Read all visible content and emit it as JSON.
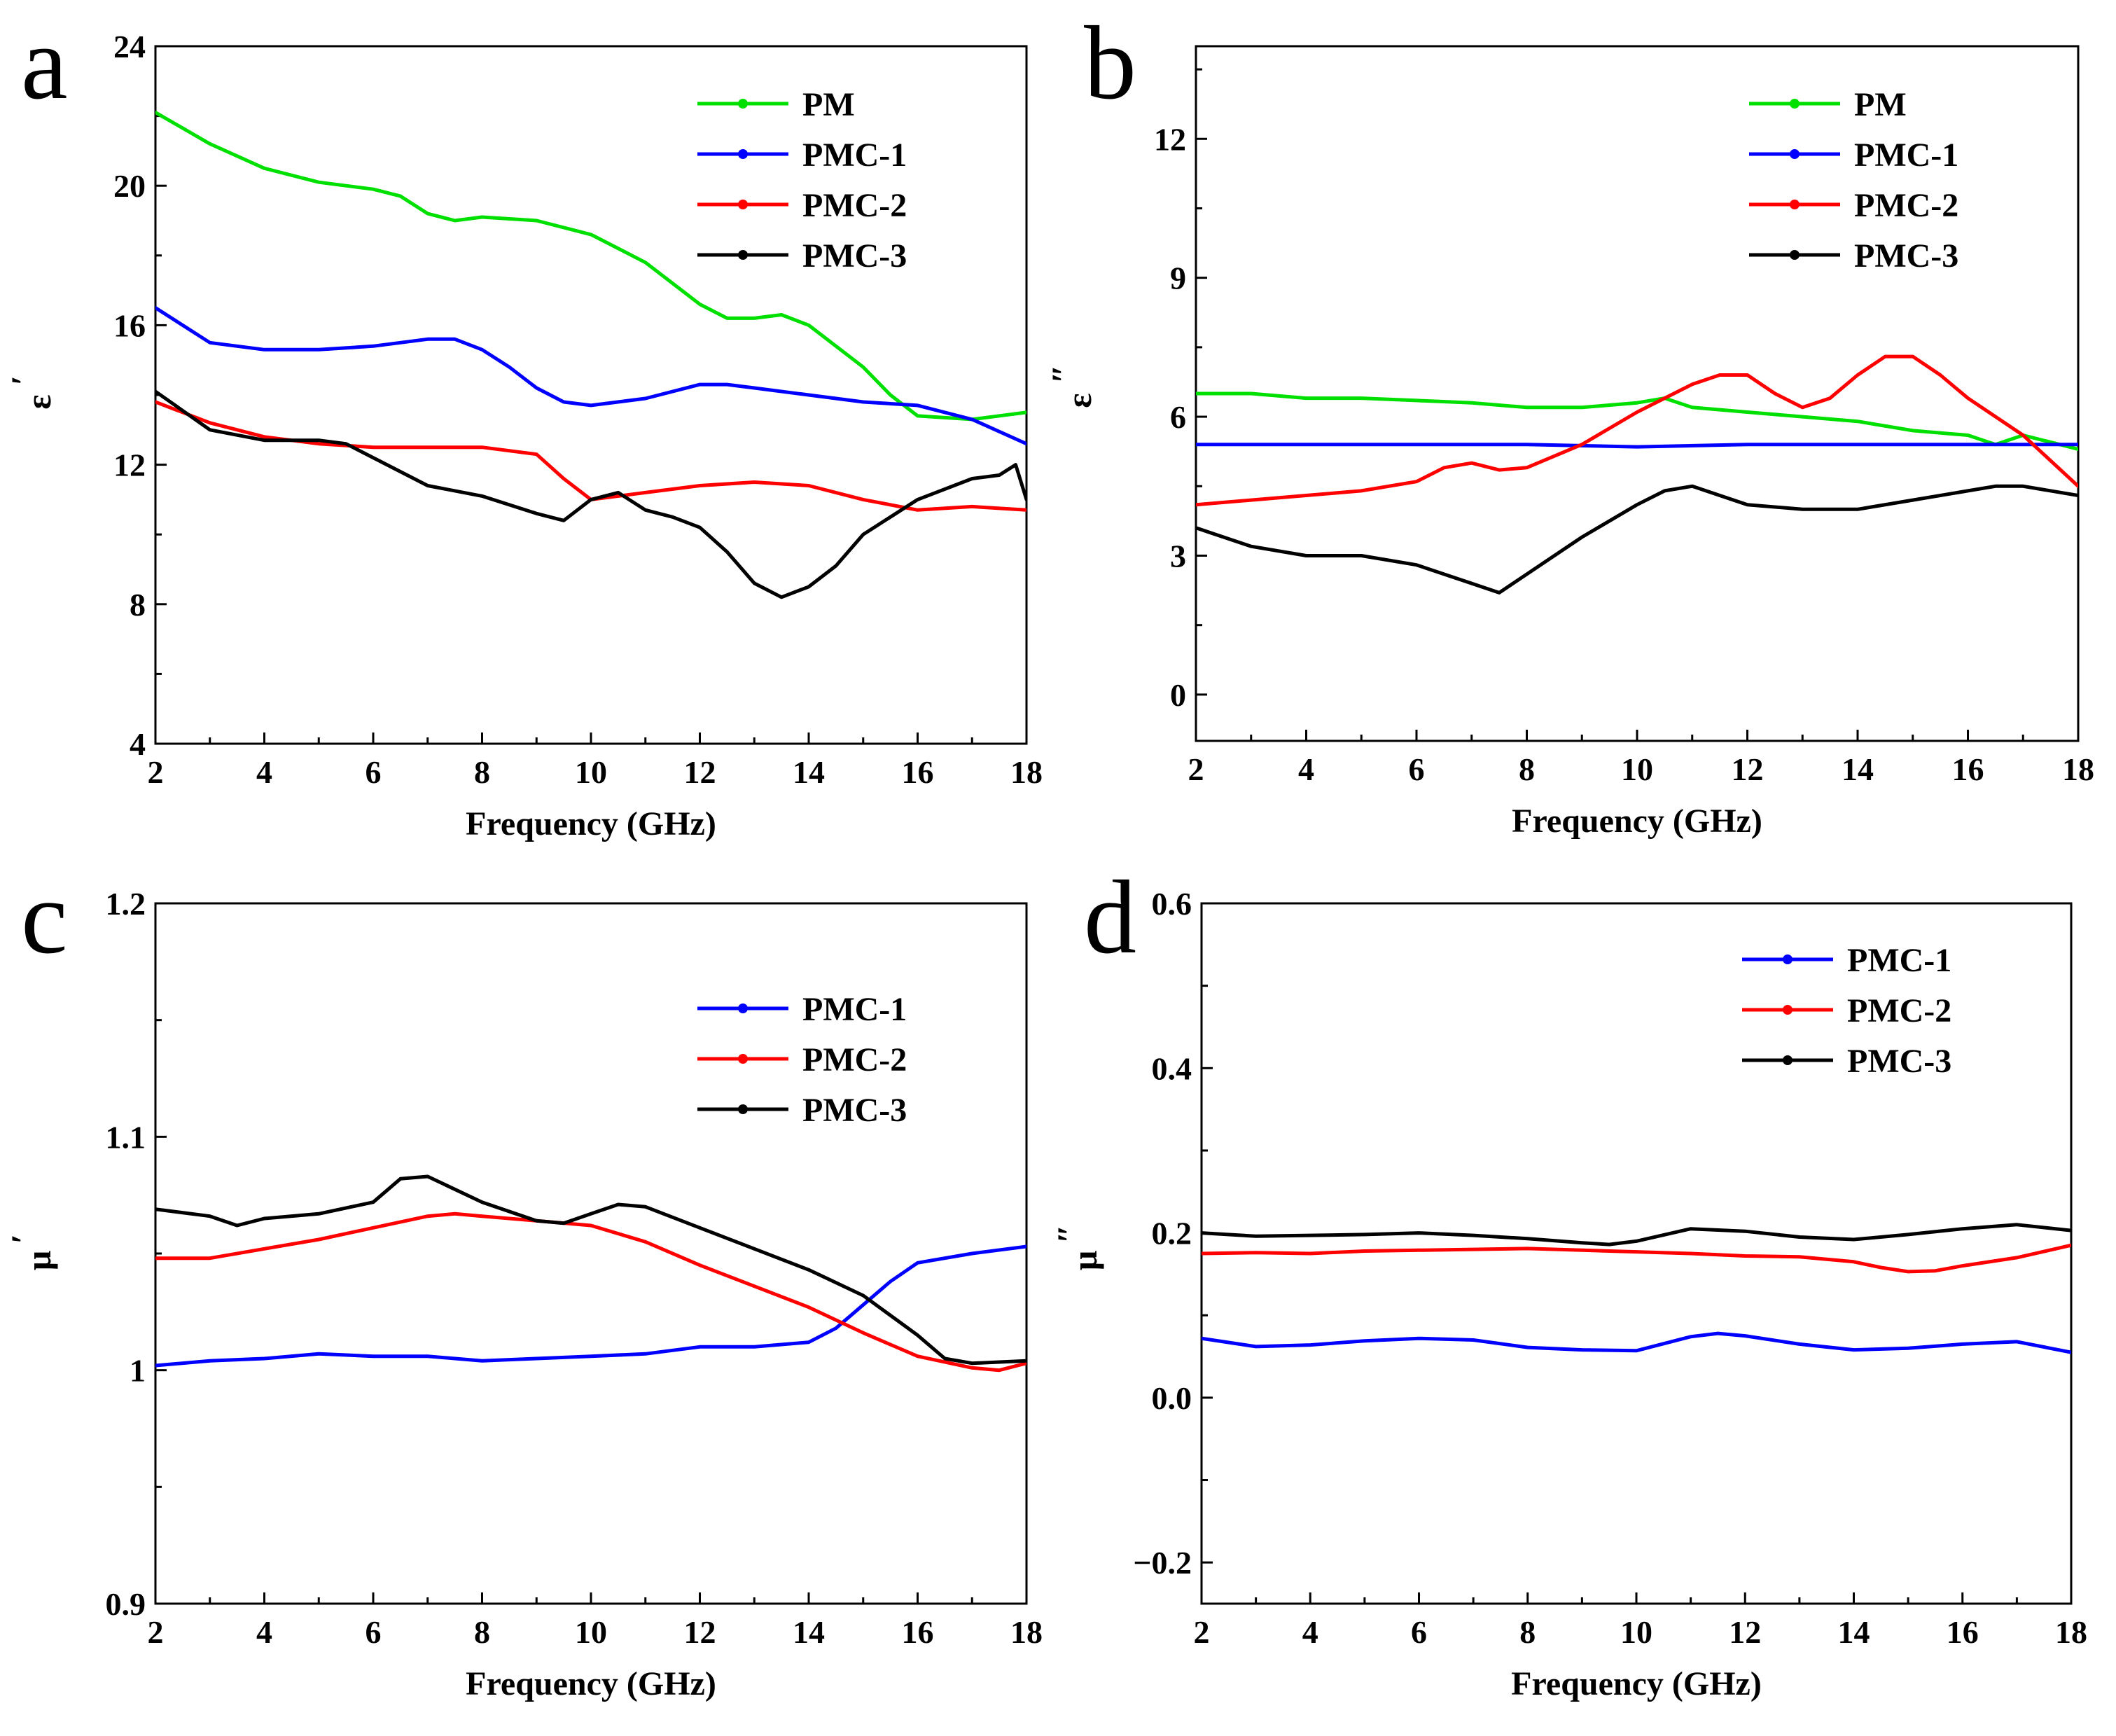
{
  "colors": {
    "PM": "#00e000",
    "PMC-1": "#0000ff",
    "PMC-2": "#ff0000",
    "PMC-3": "#000000"
  },
  "chart_data": [
    {
      "type": "line",
      "panel": "a",
      "xlabel": "Frequency (GHz)",
      "ylabel": "ε",
      "ylabel_prime": "′",
      "xlim": [
        2,
        18
      ],
      "ylim": [
        4,
        24
      ],
      "xticks": [
        2,
        4,
        6,
        8,
        10,
        12,
        14,
        16,
        18
      ],
      "yticks": [
        4,
        8,
        12,
        16,
        20,
        24
      ],
      "legend_position": "top-right",
      "series": [
        {
          "name": "PM",
          "x": [
            2,
            3,
            4,
            5,
            6,
            6.5,
            7,
            7.5,
            8,
            9,
            10,
            11,
            12,
            12.5,
            13,
            13.5,
            14,
            15,
            15.5,
            16,
            17,
            18
          ],
          "y": [
            22.1,
            21.2,
            20.5,
            20.1,
            19.9,
            19.7,
            19.2,
            19.0,
            19.1,
            19.0,
            18.6,
            17.8,
            16.6,
            16.2,
            16.2,
            16.3,
            16.0,
            14.8,
            14.0,
            13.4,
            13.3,
            13.5
          ]
        },
        {
          "name": "PMC-1",
          "x": [
            2,
            3,
            4,
            5,
            6,
            7,
            7.5,
            8,
            8.5,
            9,
            9.5,
            10,
            11,
            12,
            12.5,
            13,
            14,
            15,
            16,
            17,
            18
          ],
          "y": [
            16.5,
            15.5,
            15.3,
            15.3,
            15.4,
            15.6,
            15.6,
            15.3,
            14.8,
            14.2,
            13.8,
            13.7,
            13.9,
            14.3,
            14.3,
            14.2,
            14.0,
            13.8,
            13.7,
            13.3,
            12.6
          ]
        },
        {
          "name": "PMC-2",
          "x": [
            2,
            3,
            4,
            5,
            6,
            7,
            8,
            9,
            9.5,
            10,
            11,
            12,
            13,
            14,
            15,
            16,
            17,
            18
          ],
          "y": [
            13.8,
            13.2,
            12.8,
            12.6,
            12.5,
            12.5,
            12.5,
            12.3,
            11.6,
            11.0,
            11.2,
            11.4,
            11.5,
            11.4,
            11.0,
            10.7,
            10.8,
            10.7
          ]
        },
        {
          "name": "PMC-3",
          "x": [
            2,
            3,
            4,
            5,
            5.5,
            6,
            7,
            8,
            9,
            9.5,
            10,
            10.5,
            11,
            11.5,
            12,
            12.5,
            13,
            13.5,
            14,
            14.5,
            15,
            16,
            17,
            17.5,
            17.8,
            18
          ],
          "y": [
            14.1,
            13.0,
            12.7,
            12.7,
            12.6,
            12.2,
            11.4,
            11.1,
            10.6,
            10.4,
            11.0,
            11.2,
            10.7,
            10.5,
            10.2,
            9.5,
            8.6,
            8.2,
            8.5,
            9.1,
            10.0,
            11.0,
            11.6,
            11.7,
            12.0,
            11.0
          ]
        }
      ]
    },
    {
      "type": "line",
      "panel": "b",
      "xlabel": "Frequency (GHz)",
      "ylabel": "ε",
      "ylabel_prime": "″",
      "xlim": [
        2,
        18
      ],
      "ylim": [
        -1,
        14
      ],
      "xticks": [
        2,
        4,
        6,
        8,
        10,
        12,
        14,
        16,
        18
      ],
      "yticks": [
        0,
        3,
        6,
        9,
        12
      ],
      "legend_position": "top-right",
      "series": [
        {
          "name": "PM",
          "x": [
            2,
            3,
            4,
            5,
            6,
            7,
            8,
            9,
            10,
            10.5,
            11,
            12,
            13,
            14,
            15,
            16,
            16.5,
            17,
            18
          ],
          "y": [
            6.5,
            6.5,
            6.4,
            6.4,
            6.35,
            6.3,
            6.2,
            6.2,
            6.3,
            6.4,
            6.2,
            6.1,
            6.0,
            5.9,
            5.7,
            5.6,
            5.4,
            5.6,
            5.3
          ]
        },
        {
          "name": "PMC-1",
          "x": [
            2,
            4,
            6,
            8,
            10,
            12,
            14,
            16,
            18
          ],
          "y": [
            5.4,
            5.4,
            5.4,
            5.4,
            5.35,
            5.4,
            5.4,
            5.4,
            5.4
          ]
        },
        {
          "name": "PMC-2",
          "x": [
            2,
            3,
            4,
            5,
            6,
            6.5,
            7,
            7.5,
            8,
            9,
            10,
            11,
            11.5,
            12,
            12.5,
            13,
            13.5,
            14,
            14.5,
            15,
            15.5,
            16,
            17,
            18
          ],
          "y": [
            4.1,
            4.2,
            4.3,
            4.4,
            4.6,
            4.9,
            5.0,
            4.85,
            4.9,
            5.4,
            6.1,
            6.7,
            6.9,
            6.9,
            6.5,
            6.2,
            6.4,
            6.9,
            7.3,
            7.3,
            6.9,
            6.4,
            5.6,
            4.5
          ]
        },
        {
          "name": "PMC-3",
          "x": [
            2,
            3,
            4,
            5,
            6,
            7,
            7.5,
            8,
            9,
            10,
            10.5,
            11,
            11.5,
            12,
            13,
            14,
            15,
            16,
            16.5,
            17,
            18
          ],
          "y": [
            3.6,
            3.2,
            3.0,
            3.0,
            2.8,
            2.4,
            2.2,
            2.6,
            3.4,
            4.1,
            4.4,
            4.5,
            4.3,
            4.1,
            4.0,
            4.0,
            4.2,
            4.4,
            4.5,
            4.5,
            4.3
          ]
        }
      ]
    },
    {
      "type": "line",
      "panel": "c",
      "xlabel": "Frequency (GHz)",
      "ylabel": "μ",
      "ylabel_prime": "′",
      "xlim": [
        2,
        18
      ],
      "ylim": [
        0.9,
        1.2
      ],
      "xticks": [
        2,
        4,
        6,
        8,
        10,
        12,
        14,
        16,
        18
      ],
      "yticks": [
        0.9,
        1.0,
        1.1,
        1.2
      ],
      "legend_position": "top-right",
      "series": [
        {
          "name": "PMC-1",
          "x": [
            2,
            3,
            4,
            5,
            6,
            7,
            8,
            9,
            10,
            11,
            12,
            13,
            14,
            14.5,
            15,
            15.5,
            16,
            17,
            18
          ],
          "y": [
            1.002,
            1.004,
            1.005,
            1.007,
            1.006,
            1.006,
            1.004,
            1.005,
            1.006,
            1.007,
            1.01,
            1.01,
            1.012,
            1.018,
            1.028,
            1.038,
            1.046,
            1.05,
            1.053
          ]
        },
        {
          "name": "PMC-2",
          "x": [
            2,
            3,
            4,
            5,
            6,
            7,
            7.5,
            8,
            9,
            10,
            11,
            12,
            13,
            14,
            15,
            16,
            17,
            17.5,
            18
          ],
          "y": [
            1.048,
            1.048,
            1.052,
            1.056,
            1.061,
            1.066,
            1.067,
            1.066,
            1.064,
            1.062,
            1.055,
            1.045,
            1.036,
            1.027,
            1.016,
            1.006,
            1.001,
            1.0,
            1.003
          ]
        },
        {
          "name": "PMC-3",
          "x": [
            2,
            3,
            3.5,
            4,
            5,
            6,
            6.5,
            7,
            8,
            9,
            9.5,
            10,
            10.5,
            11,
            12,
            13,
            14,
            15,
            16,
            16.5,
            17,
            18
          ],
          "y": [
            1.069,
            1.066,
            1.062,
            1.065,
            1.067,
            1.072,
            1.082,
            1.083,
            1.072,
            1.064,
            1.063,
            1.067,
            1.071,
            1.07,
            1.061,
            1.052,
            1.043,
            1.032,
            1.015,
            1.005,
            1.003,
            1.004
          ]
        }
      ]
    },
    {
      "type": "line",
      "panel": "d",
      "xlabel": "Frequency (GHz)",
      "ylabel": "μ",
      "ylabel_prime": "″",
      "xlim": [
        2,
        18
      ],
      "ylim": [
        -0.25,
        0.6
      ],
      "xticks": [
        2,
        4,
        6,
        8,
        10,
        12,
        14,
        16,
        18
      ],
      "yticks": [
        -0.2,
        0.0,
        0.2,
        0.4,
        0.6
      ],
      "ytick_labels": [
        "−0.2",
        "0.0",
        "0.2",
        "0.4",
        "0.6"
      ],
      "legend_position": "top-right",
      "series": [
        {
          "name": "PMC-1",
          "x": [
            2,
            3,
            4,
            5,
            6,
            7,
            8,
            9,
            10,
            11,
            11.5,
            12,
            13,
            14,
            15,
            16,
            17,
            18
          ],
          "y": [
            0.072,
            0.062,
            0.064,
            0.069,
            0.072,
            0.07,
            0.061,
            0.058,
            0.057,
            0.074,
            0.078,
            0.075,
            0.065,
            0.058,
            0.06,
            0.065,
            0.068,
            0.055
          ]
        },
        {
          "name": "PMC-2",
          "x": [
            2,
            3,
            4,
            5,
            6,
            7,
            8,
            9,
            10,
            11,
            12,
            13,
            14,
            14.5,
            15,
            15.5,
            16,
            17,
            18
          ],
          "y": [
            0.175,
            0.176,
            0.175,
            0.178,
            0.179,
            0.18,
            0.181,
            0.179,
            0.177,
            0.175,
            0.172,
            0.171,
            0.165,
            0.158,
            0.153,
            0.154,
            0.16,
            0.17,
            0.185
          ]
        },
        {
          "name": "PMC-3",
          "x": [
            2,
            3,
            4,
            5,
            6,
            7,
            8,
            9,
            9.5,
            10,
            11,
            12,
            13,
            14,
            15,
            16,
            17,
            18
          ],
          "y": [
            0.2,
            0.196,
            0.197,
            0.198,
            0.2,
            0.197,
            0.193,
            0.188,
            0.186,
            0.19,
            0.205,
            0.202,
            0.195,
            0.192,
            0.198,
            0.205,
            0.21,
            0.203
          ]
        }
      ]
    }
  ]
}
